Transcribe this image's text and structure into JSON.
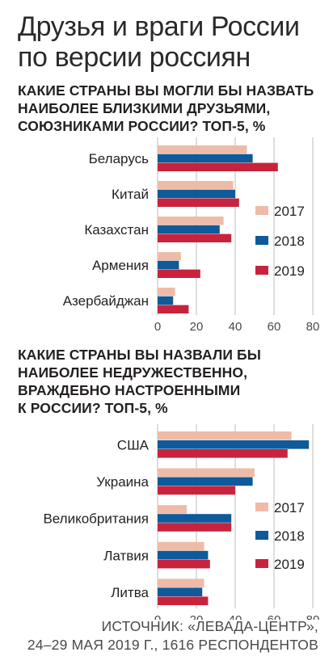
{
  "title_line1": "Друзья и враги России",
  "title_line2": "по версии россиян",
  "source_line1": "ИСТОЧНИК: «ЛЕВАДА-ЦЕНТР»,",
  "source_line2": "24–29 МАЯ 2019 Г., 1616 РЕСПОНДЕНТОВ",
  "colors": {
    "2017": "#efbba9",
    "2018": "#0e5a9a",
    "2019": "#c8233d",
    "grid": "#bdbdbd"
  },
  "chart_data": [
    {
      "type": "bar",
      "orientation": "horizontal",
      "title_lines": [
        "КАКИЕ СТРАНЫ ВЫ МОГЛИ БЫ НАЗВАТЬ",
        "НАИБОЛЕЕ БЛИЗКИМИ ДРУЗЬЯМИ,",
        "СОЮЗНИКАМИ РОССИИ? ТОП-5, %"
      ],
      "categories": [
        "Беларусь",
        "Китай",
        "Казахстан",
        "Армения",
        "Азербайджан"
      ],
      "series": [
        {
          "name": "2017",
          "values": [
            46,
            39,
            34,
            12,
            9
          ]
        },
        {
          "name": "2018",
          "values": [
            49,
            40,
            32,
            11,
            8
          ]
        },
        {
          "name": "2019",
          "values": [
            62,
            42,
            38,
            22,
            16
          ]
        }
      ],
      "xlim": [
        0,
        80
      ],
      "xticks": [
        "0",
        "20",
        "40",
        "60",
        "80"
      ],
      "grid": true,
      "legend_position": "right"
    },
    {
      "type": "bar",
      "orientation": "horizontal",
      "title_lines": [
        "КАКИЕ СТРАНЫ ВЫ НАЗВАЛИ БЫ",
        "НАИБОЛЕЕ НЕДРУЖЕСТВЕННО,",
        "ВРАЖДЕБНО НАСТРОЕННЫМИ",
        "К РОССИИ? ТОП-5, %"
      ],
      "categories": [
        "США",
        "Украина",
        "Великобритания",
        "Латвия",
        "Литва"
      ],
      "series": [
        {
          "name": "2017",
          "values": [
            69,
            50,
            15,
            24,
            24
          ]
        },
        {
          "name": "2018",
          "values": [
            78,
            49,
            38,
            26,
            23
          ]
        },
        {
          "name": "2019",
          "values": [
            67,
            40,
            38,
            27,
            26
          ]
        }
      ],
      "xlim": [
        0,
        80
      ],
      "xticks": [
        "0",
        "20",
        "40",
        "60",
        "80"
      ],
      "grid": true,
      "legend_position": "right"
    }
  ]
}
